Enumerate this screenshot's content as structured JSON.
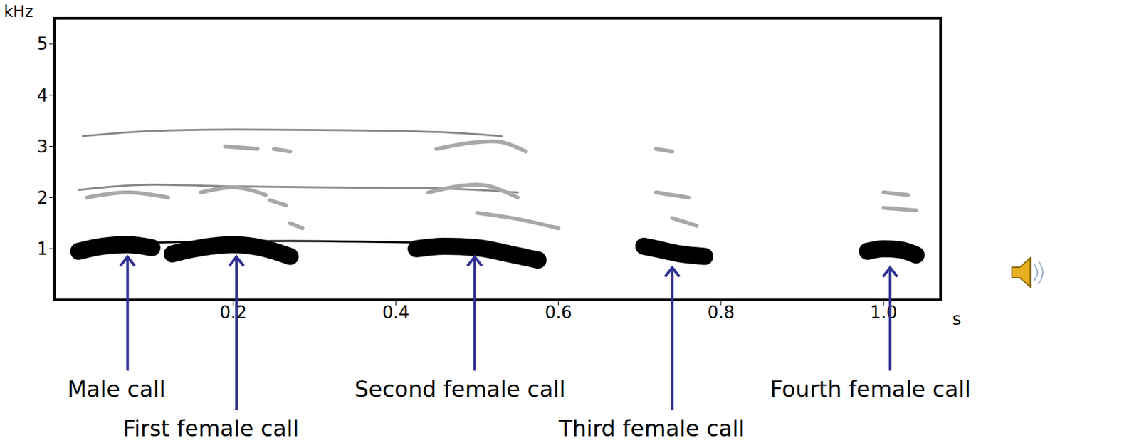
{
  "chart_data": {
    "type": "spectrogram",
    "x_label": "s",
    "y_label": "kHz",
    "xlim": [
      -0.02,
      1.07
    ],
    "xticks": [
      0.2,
      0.4,
      0.6,
      0.8,
      {
        "value": 1.0,
        "label": "1.0"
      }
    ],
    "ylim": [
      0,
      5.5
    ],
    "yticks": [
      1,
      2,
      3,
      4,
      5
    ],
    "tick_labels": true,
    "grid": false,
    "series": [
      {
        "x": [
          0.015,
          0.1,
          0.2,
          0.3,
          0.45,
          0.53
        ],
        "values": [
          3.2,
          3.3,
          3.33,
          3.32,
          3.28,
          3.2
        ],
        "color": "#888888",
        "line_style": "solid"
      },
      {
        "x": [
          0.01,
          0.1,
          0.2,
          0.3,
          0.45,
          0.55
        ],
        "values": [
          2.15,
          2.25,
          2.22,
          2.2,
          2.18,
          2.1
        ],
        "color": "#888888",
        "line_style": "solid"
      },
      {
        "x": [
          0.02,
          0.07,
          0.12
        ],
        "values": [
          2.0,
          2.1,
          2.0
        ],
        "color": "#a8a8a8",
        "line_style": "faint"
      },
      {
        "x": [
          0.16,
          0.2,
          0.24
        ],
        "values": [
          2.1,
          2.2,
          2.05
        ],
        "color": "#a8a8a8",
        "line_style": "faint"
      },
      {
        "x": [
          0.245,
          0.265
        ],
        "values": [
          1.95,
          1.85
        ],
        "color": "#a8a8a8",
        "line_style": "faint"
      },
      {
        "x": [
          0.27,
          0.285
        ],
        "values": [
          1.5,
          1.4
        ],
        "color": "#a8a8a8",
        "line_style": "faint"
      },
      {
        "x": [
          0.19,
          0.23
        ],
        "values": [
          3.0,
          2.95
        ],
        "color": "#a8a8a8",
        "line_style": "faint"
      },
      {
        "x": [
          0.25,
          0.27
        ],
        "values": [
          2.95,
          2.9
        ],
        "color": "#a8a8a8",
        "line_style": "faint"
      },
      {
        "x": [
          0.44,
          0.5,
          0.55
        ],
        "values": [
          2.1,
          2.25,
          2.0
        ],
        "color": "#a8a8a8",
        "line_style": "faint"
      },
      {
        "x": [
          0.45,
          0.52,
          0.56
        ],
        "values": [
          2.95,
          3.1,
          2.9
        ],
        "color": "#a8a8a8",
        "line_style": "faint"
      },
      {
        "x": [
          0.5,
          0.56,
          0.6
        ],
        "values": [
          1.7,
          1.55,
          1.4
        ],
        "color": "#a8a8a8",
        "line_style": "faint"
      },
      {
        "x": [
          0.72,
          0.74
        ],
        "values": [
          2.95,
          2.9
        ],
        "color": "#a8a8a8",
        "line_style": "faint"
      },
      {
        "x": [
          0.72,
          0.76
        ],
        "values": [
          2.1,
          2.0
        ],
        "color": "#a8a8a8",
        "line_style": "faint"
      },
      {
        "x": [
          0.74,
          0.77
        ],
        "values": [
          1.6,
          1.45
        ],
        "color": "#a8a8a8",
        "line_style": "faint"
      },
      {
        "x": [
          1.0,
          1.04
        ],
        "values": [
          1.8,
          1.75
        ],
        "color": "#a8a8a8",
        "line_style": "faint"
      },
      {
        "x": [
          1.0,
          1.03
        ],
        "values": [
          2.1,
          2.05
        ],
        "color": "#a8a8a8",
        "line_style": "faint"
      },
      {
        "x": [
          0.1,
          0.27,
          0.43
        ],
        "values": [
          1.12,
          1.15,
          1.12
        ],
        "color": "#000000",
        "line_style": "solid"
      },
      {
        "x": [
          0.01,
          0.04,
          0.07,
          0.1
        ],
        "values": [
          0.95,
          1.05,
          1.08,
          1.02
        ],
        "color": "#000000",
        "line_style": "thick"
      },
      {
        "x": [
          0.125,
          0.16,
          0.2,
          0.24,
          0.27
        ],
        "values": [
          0.9,
          1.02,
          1.08,
          1.0,
          0.85
        ],
        "color": "#000000",
        "line_style": "thick"
      },
      {
        "x": [
          0.425,
          0.46,
          0.5,
          0.54,
          0.575
        ],
        "values": [
          1.0,
          1.05,
          1.02,
          0.9,
          0.78
        ],
        "color": "#000000",
        "line_style": "thick"
      },
      {
        "x": [
          0.705,
          0.72,
          0.75,
          0.78
        ],
        "values": [
          1.05,
          1.0,
          0.9,
          0.85
        ],
        "color": "#000000",
        "line_style": "thick"
      },
      {
        "x": [
          0.98,
          1.0,
          1.02,
          1.04
        ],
        "values": [
          0.95,
          1.0,
          0.98,
          0.88
        ],
        "color": "#000000",
        "line_style": "thick"
      }
    ],
    "annotations": [
      {
        "text": "Male call",
        "x": 0.07,
        "y": 0.87
      },
      {
        "text": "First female call",
        "x": 0.204,
        "y": 0.87
      },
      {
        "text": "Second female call",
        "x": 0.497,
        "y": 0.87
      },
      {
        "text": "Third female call",
        "x": 0.74,
        "y": 0.66
      },
      {
        "text": "Fourth female call",
        "x": 1.008,
        "y": 0.66
      }
    ]
  }
}
